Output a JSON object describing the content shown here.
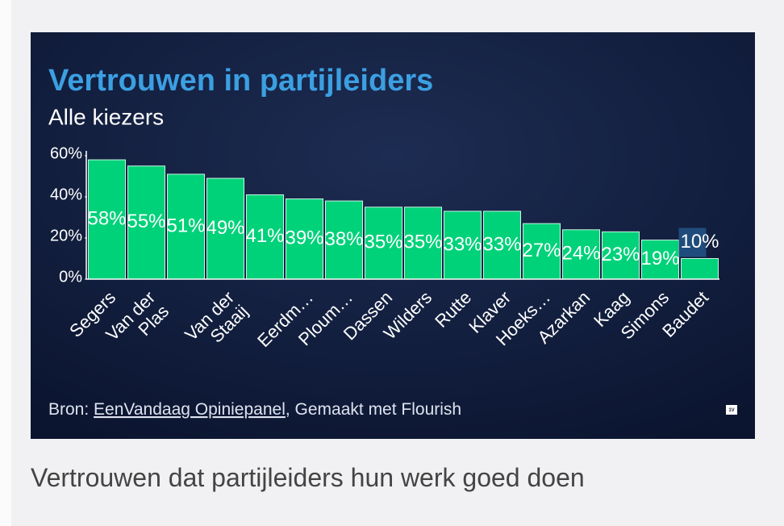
{
  "chart_data": {
    "type": "bar",
    "title": "Vertrouwen in partijleiders",
    "subtitle": "Alle kiezers",
    "categories": [
      "Segers",
      "Van der Plas",
      null,
      "Van der Staaij",
      null,
      "Eerdm…",
      "Ploum…",
      "Dassen",
      "Wilders",
      "Rutte",
      "Klaver",
      "Hoeks…",
      "Azarkan",
      "Kaag",
      "Simons",
      "Baudet"
    ],
    "values": [
      58,
      55,
      51,
      49,
      41,
      39,
      38,
      35,
      35,
      33,
      33,
      27,
      24,
      23,
      19,
      10
    ],
    "value_labels": [
      "58%",
      "55%",
      "51%",
      "49%",
      "41%",
      "39%",
      "38%",
      "35%",
      "35%",
      "33%",
      "33%",
      "27%",
      "24%",
      "23%",
      "19%",
      "10%"
    ],
    "color": "#00d27a",
    "ylim": [
      0,
      60
    ],
    "yticks": [
      {
        "value": 0,
        "label": "0%"
      },
      {
        "value": 20,
        "label": "20%"
      },
      {
        "value": 40,
        "label": "40%"
      },
      {
        "value": 60,
        "label": "60%"
      }
    ]
  },
  "source": {
    "prefix": "Bron:",
    "link": "EenVandaag Opiniepanel",
    "suffix": ", Gemaakt met Flourish"
  },
  "logo": "1V",
  "caption": "Vertrouwen dat partijleiders hun werk goed doen"
}
